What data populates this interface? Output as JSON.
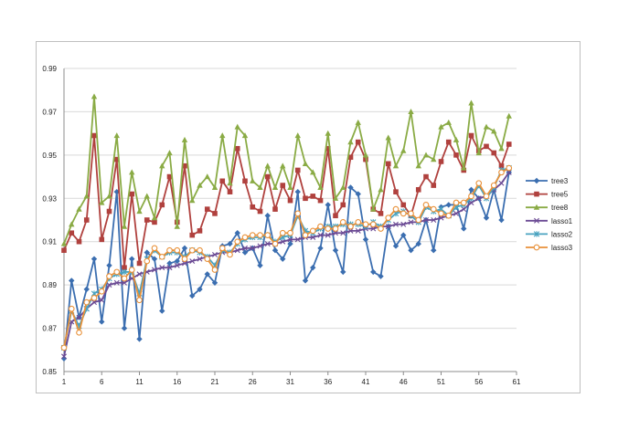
{
  "chart_data": {
    "type": "line",
    "title": "",
    "xlabel": "",
    "ylabel": "",
    "xlim": [
      1,
      61
    ],
    "ylim": [
      0.85,
      0.99
    ],
    "x_ticks": [
      1,
      6,
      11,
      16,
      21,
      26,
      31,
      36,
      41,
      46,
      51,
      56,
      61
    ],
    "y_ticks": [
      0.85,
      0.87,
      0.89,
      0.91,
      0.93,
      0.95,
      0.97,
      0.99
    ],
    "y_tick_labels": [
      "0.85",
      "0.87",
      "0.89",
      "0.91",
      "0.93",
      "0.95",
      "0.97",
      "0.99"
    ],
    "grid": "horizontal",
    "legend": "right",
    "x": [
      1,
      2,
      3,
      4,
      5,
      6,
      7,
      8,
      9,
      10,
      11,
      12,
      13,
      14,
      15,
      16,
      17,
      18,
      19,
      20,
      21,
      22,
      23,
      24,
      25,
      26,
      27,
      28,
      29,
      30,
      31,
      32,
      33,
      34,
      35,
      36,
      37,
      38,
      39,
      40,
      41,
      42,
      43,
      44,
      45,
      46,
      47,
      48,
      49,
      50,
      51,
      52,
      53,
      54,
      55,
      56,
      57,
      58,
      59,
      60
    ],
    "series": [
      {
        "name": "tree3",
        "color": "#3b6eb0",
        "marker": "diamond",
        "values": [
          0.856,
          0.892,
          0.875,
          0.888,
          0.902,
          0.873,
          0.899,
          0.933,
          0.87,
          0.902,
          0.865,
          0.905,
          0.902,
          0.878,
          0.9,
          0.901,
          0.907,
          0.885,
          0.888,
          0.895,
          0.891,
          0.908,
          0.909,
          0.914,
          0.905,
          0.907,
          0.899,
          0.922,
          0.906,
          0.902,
          0.909,
          0.933,
          0.892,
          0.898,
          0.907,
          0.927,
          0.906,
          0.896,
          0.935,
          0.932,
          0.911,
          0.896,
          0.894,
          0.917,
          0.908,
          0.913,
          0.906,
          0.909,
          0.92,
          0.906,
          0.926,
          0.927,
          0.927,
          0.916,
          0.934,
          0.93,
          0.921,
          0.934,
          0.92,
          0.942
        ]
      },
      {
        "name": "tree5",
        "color": "#b0413e",
        "marker": "square",
        "values": [
          0.906,
          0.914,
          0.91,
          0.92,
          0.959,
          0.911,
          0.924,
          0.948,
          0.898,
          0.932,
          0.9,
          0.92,
          0.919,
          0.927,
          0.94,
          0.919,
          0.945,
          0.913,
          0.915,
          0.925,
          0.923,
          0.938,
          0.933,
          0.953,
          0.938,
          0.926,
          0.924,
          0.94,
          0.925,
          0.936,
          0.929,
          0.943,
          0.93,
          0.931,
          0.929,
          0.953,
          0.922,
          0.927,
          0.949,
          0.956,
          0.948,
          0.925,
          0.923,
          0.946,
          0.933,
          0.927,
          0.922,
          0.934,
          0.94,
          0.936,
          0.947,
          0.956,
          0.95,
          0.943,
          0.959,
          0.952,
          0.954,
          0.951,
          0.945,
          0.955
        ]
      },
      {
        "name": "tree8",
        "color": "#8aab45",
        "marker": "triangle",
        "values": [
          0.909,
          0.918,
          0.925,
          0.931,
          0.977,
          0.928,
          0.931,
          0.959,
          0.917,
          0.942,
          0.924,
          0.931,
          0.921,
          0.945,
          0.951,
          0.917,
          0.957,
          0.929,
          0.936,
          0.94,
          0.935,
          0.959,
          0.937,
          0.963,
          0.959,
          0.938,
          0.935,
          0.945,
          0.935,
          0.945,
          0.935,
          0.959,
          0.946,
          0.942,
          0.935,
          0.96,
          0.93,
          0.935,
          0.956,
          0.965,
          0.95,
          0.925,
          0.934,
          0.958,
          0.945,
          0.952,
          0.97,
          0.945,
          0.95,
          0.948,
          0.963,
          0.965,
          0.957,
          0.944,
          0.974,
          0.951,
          0.963,
          0.961,
          0.953,
          0.968
        ]
      },
      {
        "name": "lasso1",
        "color": "#6b4a94",
        "marker": "x",
        "values": [
          0.857,
          0.873,
          0.875,
          0.879,
          0.882,
          0.883,
          0.89,
          0.891,
          0.891,
          0.893,
          0.895,
          0.896,
          0.897,
          0.898,
          0.898,
          0.899,
          0.9,
          0.901,
          0.902,
          0.903,
          0.904,
          0.905,
          0.905,
          0.906,
          0.907,
          0.907,
          0.908,
          0.909,
          0.909,
          0.91,
          0.911,
          0.911,
          0.912,
          0.912,
          0.913,
          0.913,
          0.914,
          0.914,
          0.915,
          0.915,
          0.916,
          0.916,
          0.917,
          0.917,
          0.918,
          0.918,
          0.919,
          0.919,
          0.92,
          0.92,
          0.921,
          0.922,
          0.923,
          0.925,
          0.928,
          0.93,
          0.931,
          0.934,
          0.937,
          0.942
        ]
      },
      {
        "name": "lasso2",
        "color": "#4aa3c0",
        "marker": "star",
        "values": [
          0.861,
          0.878,
          0.871,
          0.879,
          0.886,
          0.888,
          0.893,
          0.895,
          0.896,
          0.896,
          0.886,
          0.902,
          0.906,
          0.903,
          0.905,
          0.905,
          0.903,
          0.906,
          0.905,
          0.903,
          0.899,
          0.906,
          0.905,
          0.909,
          0.911,
          0.912,
          0.912,
          0.913,
          0.91,
          0.912,
          0.913,
          0.922,
          0.915,
          0.914,
          0.916,
          0.917,
          0.917,
          0.918,
          0.918,
          0.918,
          0.917,
          0.919,
          0.917,
          0.92,
          0.923,
          0.924,
          0.922,
          0.919,
          0.926,
          0.924,
          0.925,
          0.922,
          0.926,
          0.927,
          0.93,
          0.936,
          0.93,
          0.935,
          0.943,
          0.944
        ]
      },
      {
        "name": "lasso3",
        "color": "#e8913a",
        "marker": "circle",
        "values": [
          0.861,
          0.879,
          0.868,
          0.882,
          0.884,
          0.887,
          0.894,
          0.896,
          0.893,
          0.897,
          0.883,
          0.901,
          0.907,
          0.903,
          0.906,
          0.906,
          0.902,
          0.906,
          0.906,
          0.902,
          0.897,
          0.907,
          0.904,
          0.91,
          0.912,
          0.913,
          0.913,
          0.913,
          0.909,
          0.914,
          0.914,
          0.923,
          0.913,
          0.915,
          0.917,
          0.916,
          0.916,
          0.919,
          0.917,
          0.919,
          0.918,
          0.918,
          0.916,
          0.921,
          0.925,
          0.923,
          0.923,
          0.92,
          0.927,
          0.925,
          0.923,
          0.922,
          0.928,
          0.928,
          0.931,
          0.937,
          0.931,
          0.936,
          0.942,
          0.944
        ]
      }
    ]
  }
}
